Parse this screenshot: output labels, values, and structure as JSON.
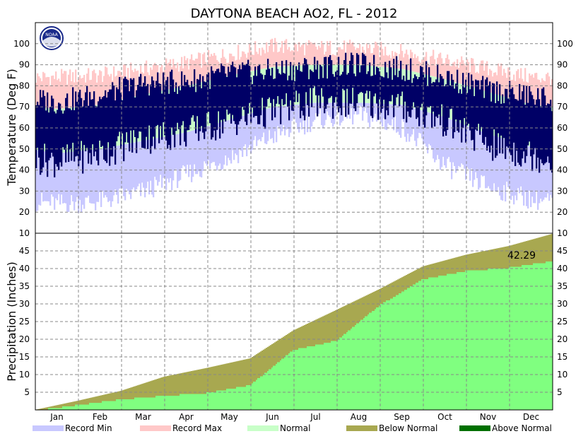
{
  "chart_data": {
    "type": "area",
    "title": "DAYTONA BEACH AO2, FL - 2012",
    "x_months": [
      "Jan",
      "Feb",
      "Mar",
      "Apr",
      "May",
      "Jun",
      "Jul",
      "Aug",
      "Sep",
      "Oct",
      "Nov",
      "Dec"
    ],
    "temperature": {
      "ylabel": "Temperature (Deg F)",
      "ylim": [
        10,
        110
      ],
      "ticks": [
        20,
        30,
        40,
        50,
        60,
        70,
        80,
        90,
        100
      ],
      "series": [
        {
          "name": "Record Max",
          "color": "#ffc8c8",
          "monthly": [
            84,
            85,
            88,
            91,
            95,
            99,
            98,
            98,
            96,
            92,
            88,
            84
          ]
        },
        {
          "name": "Record Min",
          "color": "#c8c8ff",
          "monthly": [
            24,
            25,
            30,
            38,
            46,
            56,
            64,
            66,
            60,
            42,
            32,
            26
          ]
        },
        {
          "name": "Normal",
          "color": "#c8ffc8",
          "monthly_high": [
            69,
            71,
            76,
            80,
            85,
            89,
            90,
            90,
            88,
            83,
            77,
            71
          ],
          "monthly_low": [
            48,
            50,
            54,
            58,
            64,
            70,
            72,
            72,
            71,
            65,
            57,
            51
          ]
        },
        {
          "name": "Observed",
          "color": "#000066",
          "monthly_high": [
            72,
            76,
            81,
            82,
            86,
            87,
            89,
            90,
            88,
            84,
            78,
            75
          ],
          "monthly_low": [
            44,
            48,
            55,
            58,
            63,
            68,
            72,
            72,
            70,
            63,
            52,
            47
          ]
        }
      ]
    },
    "precipitation": {
      "ylabel": "Precipitation (Inches)",
      "ylim": [
        0,
        50
      ],
      "ticks": [
        5,
        10,
        15,
        20,
        25,
        30,
        35,
        40,
        45
      ],
      "top_tick_label": "10",
      "annotation": "42.29",
      "series": [
        {
          "name": "Normal (cumulative)",
          "color": "#a8a850",
          "x": [
            0,
            1,
            2,
            3,
            4,
            5,
            6,
            7,
            8,
            9,
            10,
            11,
            12
          ],
          "values": [
            0,
            2.6,
            5.4,
            9.4,
            11.9,
            14.6,
            22.5,
            28.3,
            34.2,
            40.6,
            43.9,
            46.4,
            49.8
          ]
        },
        {
          "name": "Observed (cumulative)",
          "color": "#80ff80",
          "x": [
            0,
            1,
            2,
            3,
            4,
            5,
            6,
            7,
            8,
            9,
            10,
            11,
            12
          ],
          "values": [
            0,
            1.6,
            3.2,
            4.2,
            5.0,
            7.2,
            17.2,
            19.8,
            29.8,
            37.2,
            39.5,
            40.5,
            42.29
          ]
        }
      ]
    },
    "legend": [
      {
        "label": "Record Min",
        "color": "#c8c8ff"
      },
      {
        "label": "Record Max",
        "color": "#ffc8c8"
      },
      {
        "label": "Normal",
        "color": "#c8ffc8"
      },
      {
        "label": "Below Normal",
        "color": "#a8a850"
      },
      {
        "label": "Above Normal",
        "color": "#007000"
      }
    ]
  }
}
